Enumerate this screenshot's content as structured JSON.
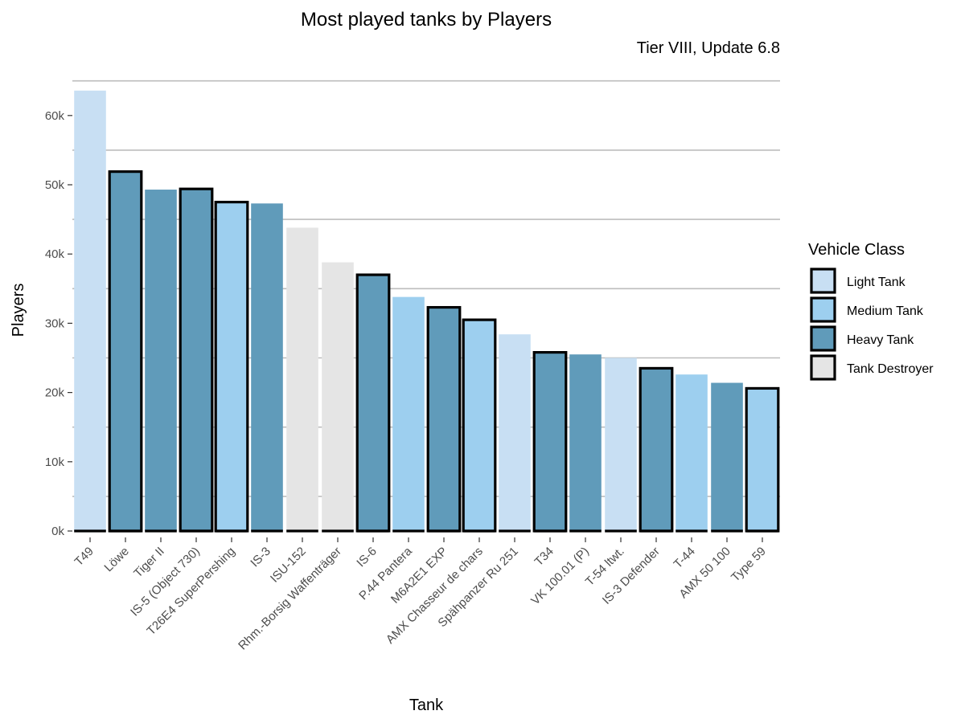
{
  "chart_data": {
    "type": "bar",
    "title": "Most played tanks by Players",
    "subtitle": "Tier VIII, Update 6.8",
    "xlabel": "Tank",
    "ylabel": "Players",
    "ylim": [
      0,
      65000
    ],
    "y_ticks": [
      0,
      10000,
      20000,
      30000,
      40000,
      50000,
      60000
    ],
    "y_tick_labels": [
      "0k",
      "10k",
      "20k",
      "30k",
      "40k",
      "50k",
      "60k"
    ],
    "grid": "horizontal",
    "legend_position": "right",
    "legend": {
      "title": "Vehicle Class",
      "entries": [
        "Light Tank",
        "Medium Tank",
        "Heavy Tank",
        "Tank Destroyer"
      ]
    },
    "class_colors": {
      "Light Tank": "#c8dff3",
      "Medium Tank": "#9dcfef",
      "Heavy Tank": "#609bba",
      "Tank Destroyer": "#e5e5e5"
    },
    "categories": [
      "T49",
      "Löwe",
      "Tiger II",
      "IS-5 (Object 730)",
      "T26E4 SuperPershing",
      "IS-3",
      "ISU-152",
      "Rhm.-Borsig Waffenträger",
      "IS-6",
      "P.44 Pantera",
      "M6A2E1 EXP",
      "AMX Chasseur de chars",
      "Spähpanzer Ru 251",
      "T34",
      "VK 100.01 (P)",
      "T-54 ltwt.",
      "IS-3 Defender",
      "T-44",
      "AMX 50 100",
      "Type 59"
    ],
    "values": [
      63600,
      51900,
      49300,
      49400,
      47500,
      47300,
      43800,
      38800,
      37000,
      33800,
      32300,
      30500,
      28400,
      25800,
      25500,
      25000,
      23500,
      22600,
      21400,
      20600
    ],
    "classes": [
      "Light Tank",
      "Heavy Tank",
      "Heavy Tank",
      "Heavy Tank",
      "Medium Tank",
      "Heavy Tank",
      "Tank Destroyer",
      "Tank Destroyer",
      "Heavy Tank",
      "Medium Tank",
      "Heavy Tank",
      "Medium Tank",
      "Light Tank",
      "Heavy Tank",
      "Heavy Tank",
      "Light Tank",
      "Heavy Tank",
      "Medium Tank",
      "Heavy Tank",
      "Medium Tank"
    ],
    "outlined": [
      false,
      true,
      false,
      true,
      true,
      false,
      false,
      false,
      true,
      false,
      true,
      true,
      false,
      true,
      false,
      false,
      true,
      false,
      false,
      true
    ]
  }
}
